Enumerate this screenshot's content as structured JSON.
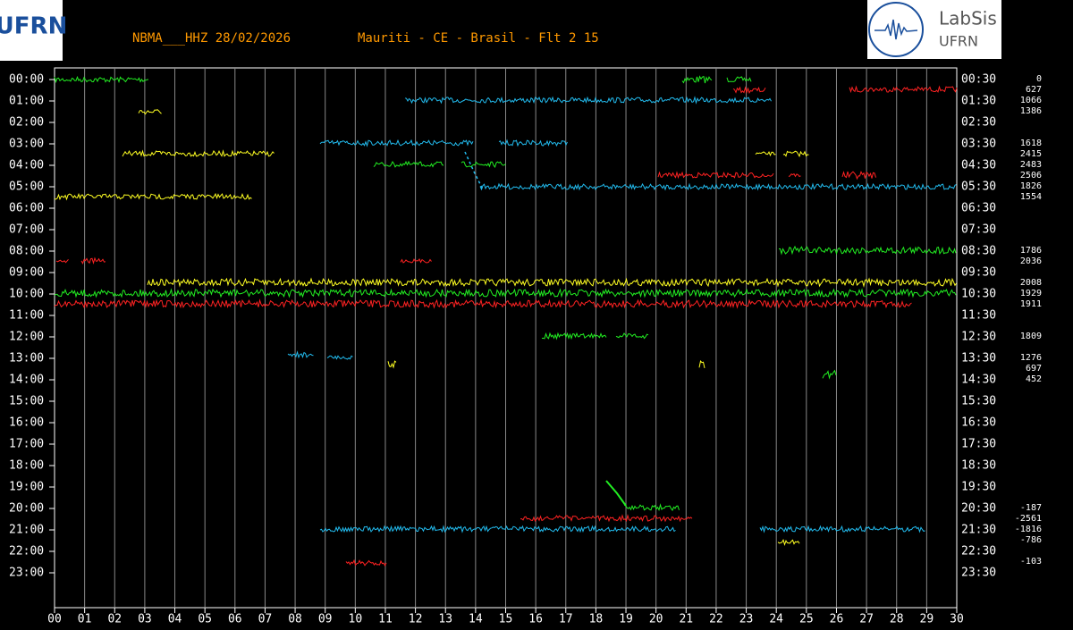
{
  "header": {
    "station": "NBMA___HHZ 28/02/2026",
    "location": "Mauriti - CE - Brasil - Flt 2 15"
  },
  "logos": {
    "left": "UFRN",
    "right_title": "LabSis",
    "right_sub": "UFRN"
  },
  "left_labels": [
    "00:00",
    "01:00",
    "02:00",
    "03:00",
    "04:00",
    "05:00",
    "06:00",
    "07:00",
    "08:00",
    "09:00",
    "10:00",
    "11:00",
    "12:00",
    "13:00",
    "14:00",
    "15:00",
    "16:00",
    "17:00",
    "18:00",
    "19:00",
    "20:00",
    "21:00",
    "22:00",
    "23:00"
  ],
  "right_labels": [
    "00:30",
    "01:30",
    "02:30",
    "03:30",
    "04:30",
    "05:30",
    "06:30",
    "07:30",
    "08:30",
    "09:30",
    "10:30",
    "11:30",
    "12:30",
    "13:30",
    "14:30",
    "15:30",
    "16:30",
    "17:30",
    "18:30",
    "19:30",
    "20:30",
    "21:30",
    "22:30",
    "23:30"
  ],
  "amplitudes": [
    0,
    627,
    1066,
    1386,
    1618,
    2415,
    2483,
    2506,
    1826,
    1554,
    1786,
    2036,
    2008,
    1929,
    1911,
    1809,
    1276,
    697,
    452,
    -187,
    -2561,
    -1816,
    -786,
    -103
  ],
  "x_ticks": [
    "00",
    "01",
    "02",
    "03",
    "04",
    "05",
    "06",
    "07",
    "08",
    "09",
    "10",
    "11",
    "12",
    "13",
    "14",
    "15",
    "16",
    "17",
    "18",
    "19",
    "20",
    "21",
    "22",
    "23",
    "24",
    "25",
    "26",
    "27",
    "28",
    "29",
    "30"
  ]
}
